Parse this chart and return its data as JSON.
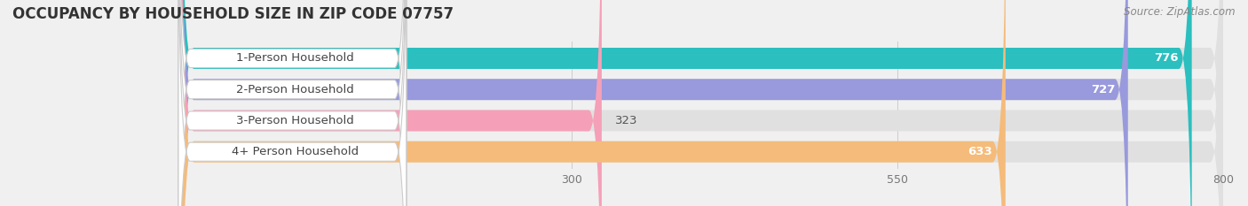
{
  "title": "OCCUPANCY BY HOUSEHOLD SIZE IN ZIP CODE 07757",
  "source": "Source: ZipAtlas.com",
  "categories": [
    "1-Person Household",
    "2-Person Household",
    "3-Person Household",
    "4+ Person Household"
  ],
  "values": [
    776,
    727,
    323,
    633
  ],
  "bar_colors": [
    "#2bbfbf",
    "#9999dd",
    "#f5a0b8",
    "#f5bb7a"
  ],
  "label_colors": [
    "white",
    "white",
    "dark",
    "white"
  ],
  "background_color": "#f0f0f0",
  "bar_bg_color": "#e0e0e0",
  "xlim": [
    0,
    800
  ],
  "xticks": [
    300,
    550,
    800
  ],
  "title_fontsize": 12,
  "source_fontsize": 8.5,
  "label_fontsize": 9.5,
  "value_fontsize": 9.5
}
